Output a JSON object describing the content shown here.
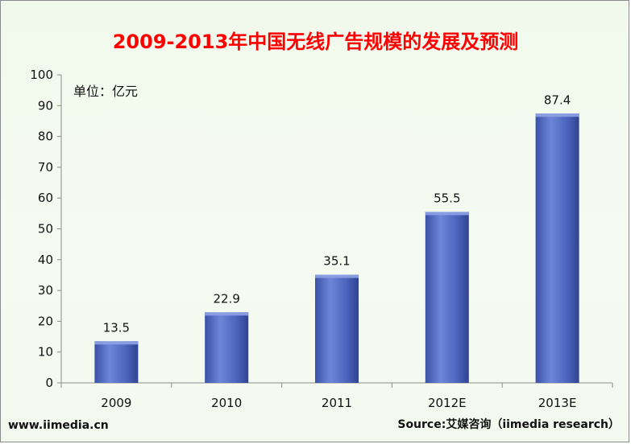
{
  "chart_data": {
    "type": "bar",
    "title": "2009-2013年中国无线广告规模的发展及预测",
    "unit_label": "单位：亿元",
    "categories": [
      "2009",
      "2010",
      "2011",
      "2012E",
      "2013E"
    ],
    "values": [
      13.5,
      22.9,
      35.1,
      55.5,
      87.4
    ],
    "value_labels": [
      "13.5",
      "22.9",
      "35.1",
      "55.5",
      "87.4"
    ],
    "ylim": [
      0,
      100
    ],
    "yticks": [
      "0",
      "10",
      "20",
      "30",
      "40",
      "50",
      "60",
      "70",
      "80",
      "90",
      "100"
    ],
    "grid": false,
    "legend": "none",
    "bar_color": "#4a63b8",
    "title_color": "#ff0000"
  },
  "footer": {
    "website": "www.iimedia.cn",
    "source": "Source:艾媒咨询（iimedia  research）"
  }
}
